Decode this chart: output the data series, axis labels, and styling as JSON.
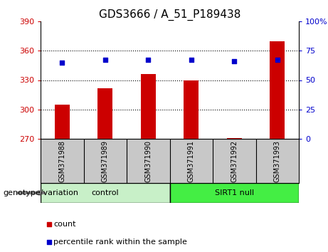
{
  "title": "GDS3666 / A_51_P189438",
  "samples": [
    "GSM371988",
    "GSM371989",
    "GSM371990",
    "GSM371991",
    "GSM371992",
    "GSM371993"
  ],
  "counts": [
    305,
    322,
    336,
    330,
    271,
    370
  ],
  "percentile_ranks": [
    65,
    67,
    67,
    67,
    66,
    67
  ],
  "ylim_left": [
    270,
    390
  ],
  "ylim_right": [
    0,
    100
  ],
  "yticks_left": [
    270,
    300,
    330,
    360,
    390
  ],
  "yticks_right": [
    0,
    25,
    50,
    75,
    100
  ],
  "bar_color": "#cc0000",
  "dot_color": "#0000cc",
  "baseline": 270,
  "control_color": "#c8f0c8",
  "sirt_color": "#44ee44",
  "genotype_label": "genotype/variation",
  "legend_count_label": "count",
  "legend_percentile_label": "percentile rank within the sample",
  "tick_label_color_left": "#cc0000",
  "tick_label_color_right": "#0000cc",
  "bg_color": "#ffffff",
  "xlabel_area_color": "#c8c8c8",
  "figsize": [
    4.61,
    3.54
  ],
  "dpi": 100,
  "grid_dotted_at": [
    300,
    330,
    360
  ],
  "bar_width": 0.35
}
